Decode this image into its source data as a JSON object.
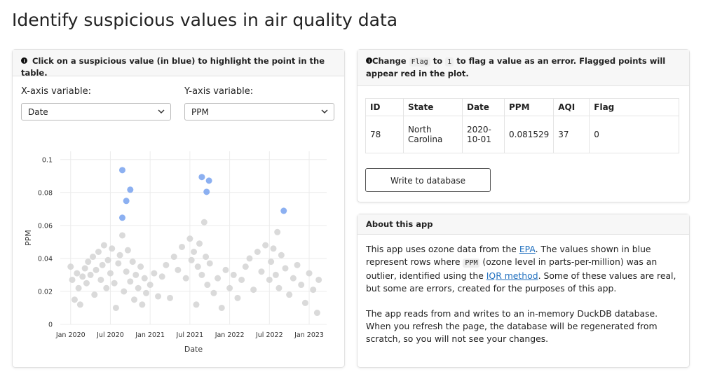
{
  "header": {
    "title": "Identify suspicious values in air quality data"
  },
  "plot_card": {
    "note": "Click on a suspicious value (in blue) to highlight the point in the table.",
    "x_select": {
      "label": "X-axis variable:",
      "value": "Date"
    },
    "y_select": {
      "label": "Y-axis variable:",
      "value": "PPM"
    }
  },
  "chart_data": {
    "type": "scatter",
    "x_label": "Date",
    "y_label": "PPM",
    "xlim": [
      2019.87,
      2023.22
    ],
    "ylim": [
      0,
      0.105
    ],
    "xticks": [
      {
        "value": 2020,
        "label": "Jan 2020"
      },
      {
        "value": 2020.5,
        "label": "Jul 2020"
      },
      {
        "value": 2021,
        "label": "Jan 2021"
      },
      {
        "value": 2021.5,
        "label": "Jul 2021"
      },
      {
        "value": 2022,
        "label": "Jan 2022"
      },
      {
        "value": 2022.5,
        "label": "Jul 2022"
      },
      {
        "value": 2023,
        "label": "Jan 2023"
      }
    ],
    "yticks": [
      0,
      0.02,
      0.04,
      0.06,
      0.08,
      0.1
    ],
    "grid": true,
    "series": [
      {
        "color": "#d6d6d6",
        "x": [
          2020.0,
          2020.02,
          2020.05,
          2020.08,
          2020.1,
          2020.12,
          2020.15,
          2020.18,
          2020.2,
          2020.22,
          2020.25,
          2020.28,
          2020.3,
          2020.32,
          2020.35,
          2020.38,
          2020.4,
          2020.42,
          2020.45,
          2020.47,
          2020.5,
          2020.52,
          2020.55,
          2020.57,
          2020.6,
          2020.62,
          2020.65,
          2020.67,
          2020.7,
          2020.72,
          2020.75,
          2020.78,
          2020.8,
          2020.82,
          2020.85,
          2020.88,
          2020.9,
          2020.93,
          2020.95,
          2021.0,
          2021.05,
          2021.1,
          2021.15,
          2021.2,
          2021.25,
          2021.3,
          2021.35,
          2021.4,
          2021.45,
          2021.5,
          2021.52,
          2021.55,
          2021.58,
          2021.6,
          2021.62,
          2021.65,
          2021.68,
          2021.7,
          2021.72,
          2021.75,
          2021.8,
          2021.85,
          2021.9,
          2021.95,
          2022.0,
          2022.05,
          2022.1,
          2022.15,
          2022.2,
          2022.25,
          2022.3,
          2022.35,
          2022.4,
          2022.45,
          2022.5,
          2022.52,
          2022.55,
          2022.58,
          2022.6,
          2022.62,
          2022.65,
          2022.7,
          2022.75,
          2022.8,
          2022.85,
          2022.9,
          2022.95,
          2023.0,
          2023.05,
          2023.1,
          2023.12
        ],
        "values": [
          0.035,
          0.027,
          0.015,
          0.031,
          0.022,
          0.012,
          0.029,
          0.034,
          0.025,
          0.038,
          0.03,
          0.041,
          0.018,
          0.033,
          0.044,
          0.027,
          0.036,
          0.048,
          0.022,
          0.039,
          0.031,
          0.046,
          0.025,
          0.01,
          0.037,
          0.042,
          0.054,
          0.02,
          0.032,
          0.045,
          0.026,
          0.038,
          0.015,
          0.03,
          0.022,
          0.035,
          0.012,
          0.028,
          0.019,
          0.024,
          0.031,
          0.017,
          0.029,
          0.036,
          0.016,
          0.041,
          0.033,
          0.047,
          0.028,
          0.052,
          0.039,
          0.044,
          0.012,
          0.035,
          0.049,
          0.03,
          0.062,
          0.041,
          0.024,
          0.037,
          0.019,
          0.028,
          0.01,
          0.033,
          0.022,
          0.03,
          0.016,
          0.027,
          0.035,
          0.04,
          0.021,
          0.044,
          0.032,
          0.048,
          0.027,
          0.038,
          0.046,
          0.03,
          0.056,
          0.022,
          0.042,
          0.034,
          0.018,
          0.028,
          0.036,
          0.024,
          0.013,
          0.031,
          0.021,
          0.007,
          0.027
        ]
      },
      {
        "color": "#7fa7f0",
        "x": [
          2020.65,
          2020.75,
          2020.7,
          2020.65,
          2021.65,
          2021.74,
          2021.71,
          2022.68
        ],
        "values": [
          0.0936,
          0.0817,
          0.0749,
          0.0647,
          0.0894,
          0.0872,
          0.0804,
          0.0689
        ]
      }
    ]
  },
  "table_card": {
    "note": [
      "Change",
      "Flag",
      "to",
      "1",
      "to flag a value as an error. Flagged points will appear red in the plot."
    ],
    "columns": [
      "ID",
      "State",
      "Date",
      "PPM",
      "AQI",
      "Flag"
    ],
    "rows": [
      [
        78,
        "North Carolina",
        "2020-10-01",
        0.081529,
        37,
        0
      ]
    ],
    "button": "Write to database"
  },
  "about": {
    "title": "About this app",
    "p1": [
      "This app uses ozone data from the ",
      "EPA",
      ". The values shown in blue represent rows where ",
      "PPM",
      " (ozone level in parts-per-million) was an outlier, identified using the ",
      "IQR method",
      ". Some of these values are real, but some are errors, created for the purposes of this app."
    ],
    "p2": "The app reads from and writes to an in-memory DuckDB database. When you refresh the page, the database will be regenerated from scratch, so you will not see your changes."
  }
}
